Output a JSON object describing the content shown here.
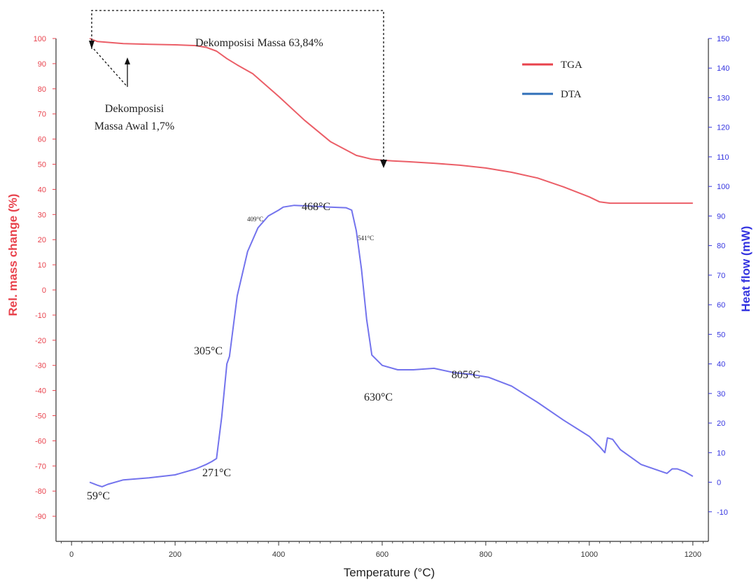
{
  "chart_data": {
    "type": "line",
    "xlabel": "Temperature (°C)",
    "ylabel_left": "Rel. mass change (%)",
    "ylabel_right": "Heat flow (mW)",
    "xlim": [
      -30,
      1230
    ],
    "ylim_left": [
      -100,
      100
    ],
    "ylim_right": [
      -20,
      150
    ],
    "x_ticks": [
      0,
      200,
      400,
      600,
      800,
      1000,
      1200
    ],
    "y_left_ticks": [
      100,
      90,
      80,
      70,
      60,
      50,
      40,
      30,
      20,
      10,
      0,
      -10,
      -20,
      -30,
      -40,
      -50,
      -60,
      -70,
      -80,
      -90
    ],
    "y_right_ticks": [
      150,
      140,
      130,
      120,
      110,
      100,
      90,
      80,
      70,
      60,
      50,
      40,
      30,
      20,
      10,
      0,
      -10
    ],
    "colors": {
      "tga": "#e8424c",
      "dta": "#5b5bea",
      "left_axis": "#e8424c",
      "right_axis": "#3434e0",
      "legend_dta": "#2f6fb8"
    },
    "legend": {
      "placement": "top-right",
      "entries": [
        "TGA",
        "DTA"
      ]
    },
    "series": [
      {
        "name": "TGA",
        "axis": "left",
        "x": [
          35,
          50,
          100,
          150,
          200,
          240,
          260,
          280,
          300,
          320,
          350,
          400,
          450,
          500,
          550,
          580,
          600,
          620,
          650,
          700,
          750,
          800,
          850,
          900,
          950,
          1000,
          1020,
          1040,
          1100,
          1150,
          1200
        ],
        "values": [
          100,
          98.8,
          98,
          97.7,
          97.5,
          97.2,
          96.5,
          95,
          92,
          89.5,
          86,
          77,
          67.5,
          59,
          53.5,
          52,
          51.6,
          51.3,
          51,
          50.4,
          49.6,
          48.5,
          46.8,
          44.5,
          41,
          37,
          35,
          34.5,
          34.5,
          34.5,
          34.5
        ]
      },
      {
        "name": "DTA",
        "axis": "right",
        "x": [
          35,
          50,
          59,
          70,
          100,
          150,
          200,
          240,
          260,
          271,
          280,
          290,
          300,
          305,
          320,
          340,
          360,
          380,
          400,
          409,
          430,
          468,
          500,
          530,
          541,
          550,
          560,
          570,
          580,
          600,
          630,
          660,
          700,
          740,
          770,
          805,
          850,
          900,
          950,
          1000,
          1020,
          1030,
          1035,
          1045,
          1060,
          1100,
          1150,
          1160,
          1170,
          1185,
          1200
        ],
        "values": [
          0,
          -1,
          -1.5,
          -0.7,
          0.8,
          1.5,
          2.5,
          4.5,
          6,
          7,
          8,
          22,
          40,
          42.5,
          63,
          78,
          86,
          90,
          92,
          93,
          93.6,
          93.3,
          93,
          92.8,
          92,
          85,
          72,
          55,
          43,
          39.5,
          38,
          38,
          38.5,
          37,
          36.5,
          35.5,
          32.5,
          27,
          21,
          15.5,
          12,
          10,
          15,
          14.5,
          11,
          6,
          3,
          4.5,
          4.5,
          3.5,
          2
        ]
      }
    ],
    "annotations": {
      "dekomposisi_massa": "Dekomposisi Massa  63,84%",
      "dekomposisi_awal_line1": "Dekomposisi",
      "dekomposisi_awal_line2": "Massa Awal 1,7%",
      "t59": "59°C",
      "t271": "271°C",
      "t305": "305°C",
      "t409": "409°C",
      "t468": "468°C",
      "t541": "541°C",
      "t630": "630°C",
      "t805": "805°C"
    }
  }
}
